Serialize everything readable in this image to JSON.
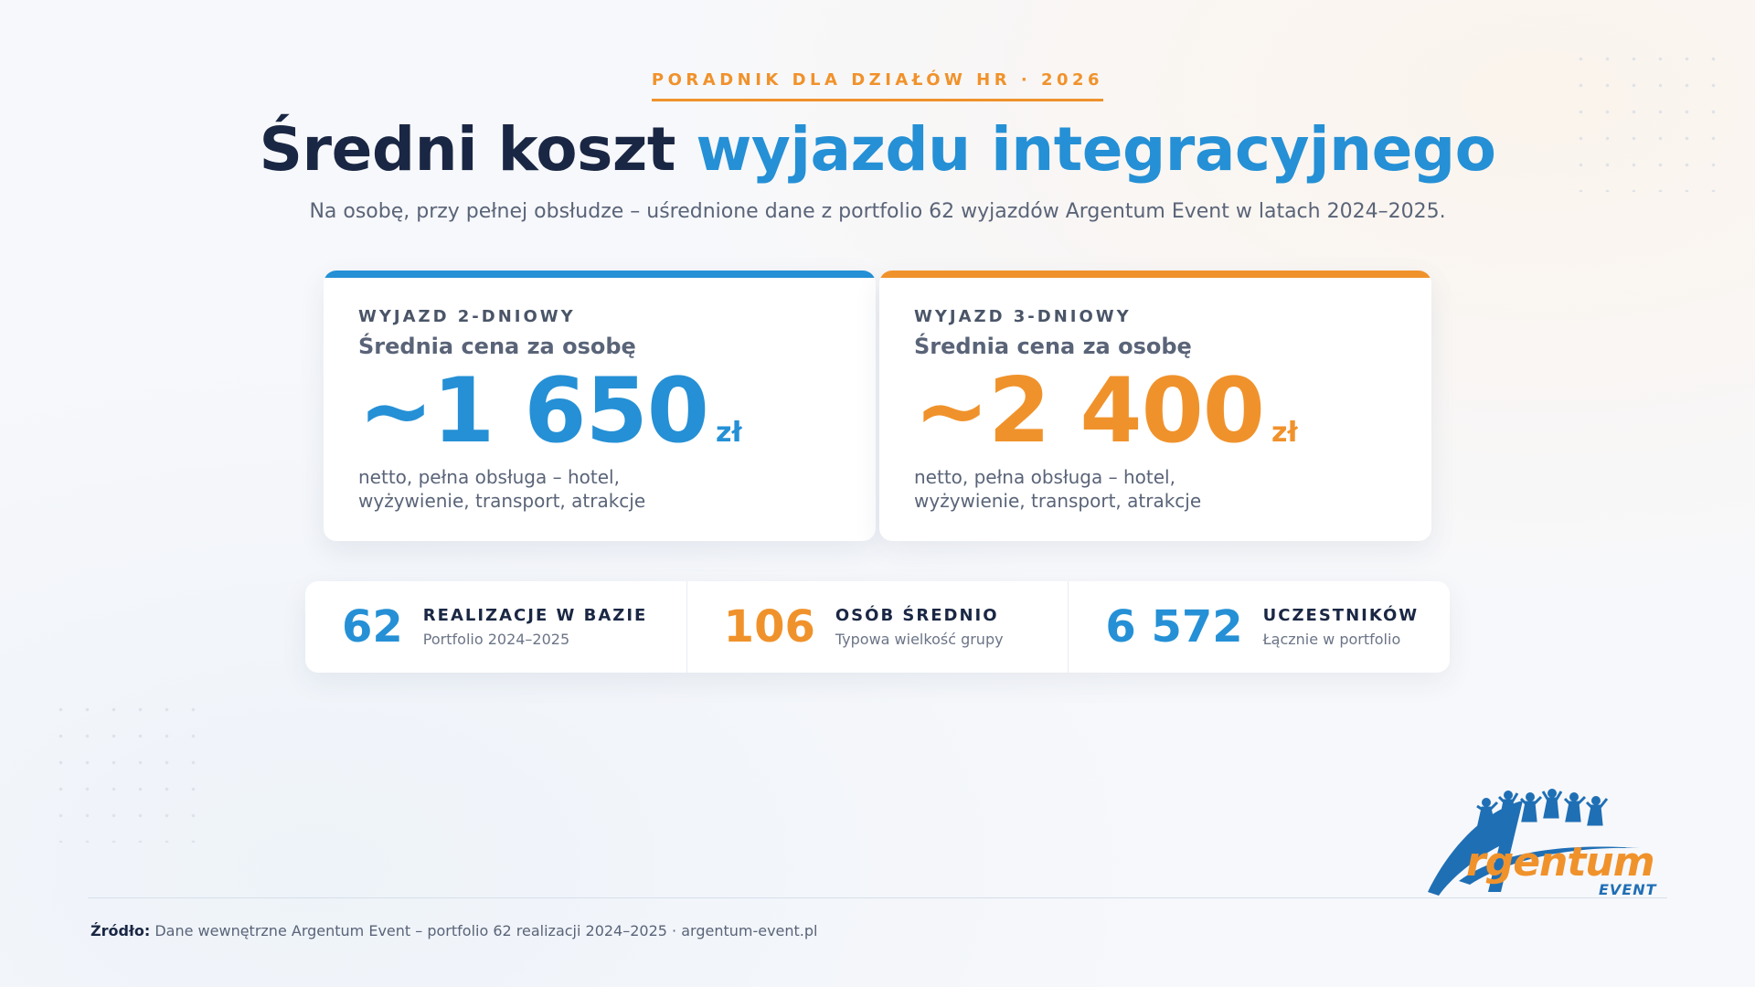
{
  "header": {
    "eyebrow": "PORADNIK DLA DZIAŁÓW HR · 2026",
    "title_main": "Średni koszt ",
    "title_accent": "wyjazdu integracyjnego",
    "subtitle": "Na osobę, przy pełnej obsłudze – uśrednione dane z portfolio 62 wyjazdów Argentum Event w latach 2024–2025."
  },
  "cards": [
    {
      "kicker": "WYJAZD 2-DNIOWY",
      "label": "Średnia cena za osobę",
      "price": "~1 650",
      "unit": "zł",
      "note": "netto, pełna obsługa – hotel, wyżywienie, transport, atrakcje",
      "color": "#2590d5"
    },
    {
      "kicker": "WYJAZD 3-DNIOWY",
      "label": "Średnia cena za osobę",
      "price": "~2 400",
      "unit": "zł",
      "note": "netto, pełna obsługa – hotel, wyżywienie, transport, atrakcje",
      "color": "#f0922b"
    }
  ],
  "stats": [
    {
      "value": "62",
      "title": "REALIZACJE W BAZIE",
      "sub": "Portfolio 2024–2025",
      "color": "#2590d5"
    },
    {
      "value": "106",
      "title": "OSÓB ŚREDNIO",
      "sub": "Typowa wielkość grupy",
      "color": "#f0922b"
    },
    {
      "value": "6 572",
      "title": "UCZESTNIKÓW",
      "sub": "Łącznie w portfolio",
      "color": "#2590d5"
    }
  ],
  "footer": {
    "source_label": "Źródło:",
    "source_text": " Dane wewnętrzne Argentum Event – portfolio 62 realizacji 2024–2025 · argentum-event.pl"
  },
  "logo": {
    "brand": "rgentum",
    "sub": "EVENT",
    "icon": "people-jumping-arch-logo"
  }
}
